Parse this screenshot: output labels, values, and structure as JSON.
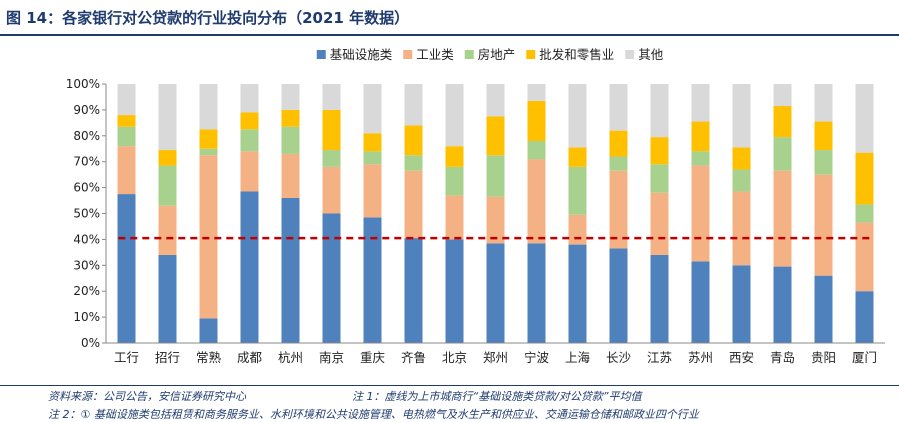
{
  "header": {
    "title": "图 14：各家银行对公贷款的行业投向分布（2021 年数据）"
  },
  "footer": {
    "source": "资料来源：公司公告，安信证券研究中心",
    "note1": "注 1：虚线为上市城商行“基础设施类贷款/对公贷款”平均值",
    "note2": "注 2：① 基础设施类包括租赁和商务服务业、水利环境和公共设施管理、电热燃气及水生产和供应业、交通运输仓储和邮政业四个行业"
  },
  "chart_data": {
    "type": "bar",
    "stacked": true,
    "categories": [
      "工行",
      "招行",
      "常熟",
      "成都",
      "杭州",
      "南京",
      "重庆",
      "齐鲁",
      "北京",
      "郑州",
      "宁波",
      "上海",
      "长沙",
      "江苏",
      "苏州",
      "西安",
      "青岛",
      "贵阳",
      "厦门"
    ],
    "series": [
      {
        "name": "基础设施类",
        "color": "#4f81bd",
        "values": [
          57.5,
          34.0,
          9.5,
          58.5,
          56.0,
          50.0,
          48.5,
          40.5,
          40.0,
          38.5,
          38.5,
          38.0,
          36.5,
          34.0,
          31.5,
          30.0,
          29.5,
          26.0,
          20.0
        ]
      },
      {
        "name": "工业类",
        "color": "#f4b183",
        "values": [
          18.5,
          19.0,
          63.0,
          15.5,
          17.0,
          18.0,
          20.5,
          26.0,
          17.0,
          18.0,
          32.5,
          11.5,
          30.0,
          24.0,
          37.0,
          28.5,
          37.0,
          39.0,
          26.5
        ]
      },
      {
        "name": "房地产",
        "color": "#a9d18e",
        "values": [
          7.5,
          15.5,
          2.5,
          8.5,
          10.5,
          6.5,
          5.0,
          6.0,
          11.0,
          16.0,
          7.0,
          18.5,
          5.5,
          11.0,
          5.5,
          8.5,
          13.0,
          9.5,
          7.0
        ]
      },
      {
        "name": "批发和零售业",
        "color": "#ffc000",
        "values": [
          4.5,
          6.0,
          7.5,
          6.5,
          6.5,
          15.5,
          7.0,
          11.5,
          8.0,
          15.0,
          15.5,
          7.5,
          10.0,
          10.5,
          11.5,
          8.5,
          12.0,
          11.0,
          20.0
        ]
      },
      {
        "name": "其他",
        "color": "#d9d9d9",
        "values": [
          12.0,
          25.5,
          17.5,
          11.0,
          10.0,
          10.0,
          19.0,
          16.0,
          24.0,
          12.5,
          6.5,
          24.5,
          18.0,
          20.5,
          14.5,
          24.5,
          8.5,
          14.5,
          26.5
        ]
      }
    ],
    "yticks": [
      "0%",
      "10%",
      "20%",
      "30%",
      "40%",
      "50%",
      "60%",
      "70%",
      "80%",
      "90%",
      "100%"
    ],
    "ylim": [
      0,
      100
    ],
    "reference_line": {
      "value": 40.5,
      "color": "#c00000",
      "style": "dashed"
    },
    "legend": "top-center",
    "grid": false
  }
}
